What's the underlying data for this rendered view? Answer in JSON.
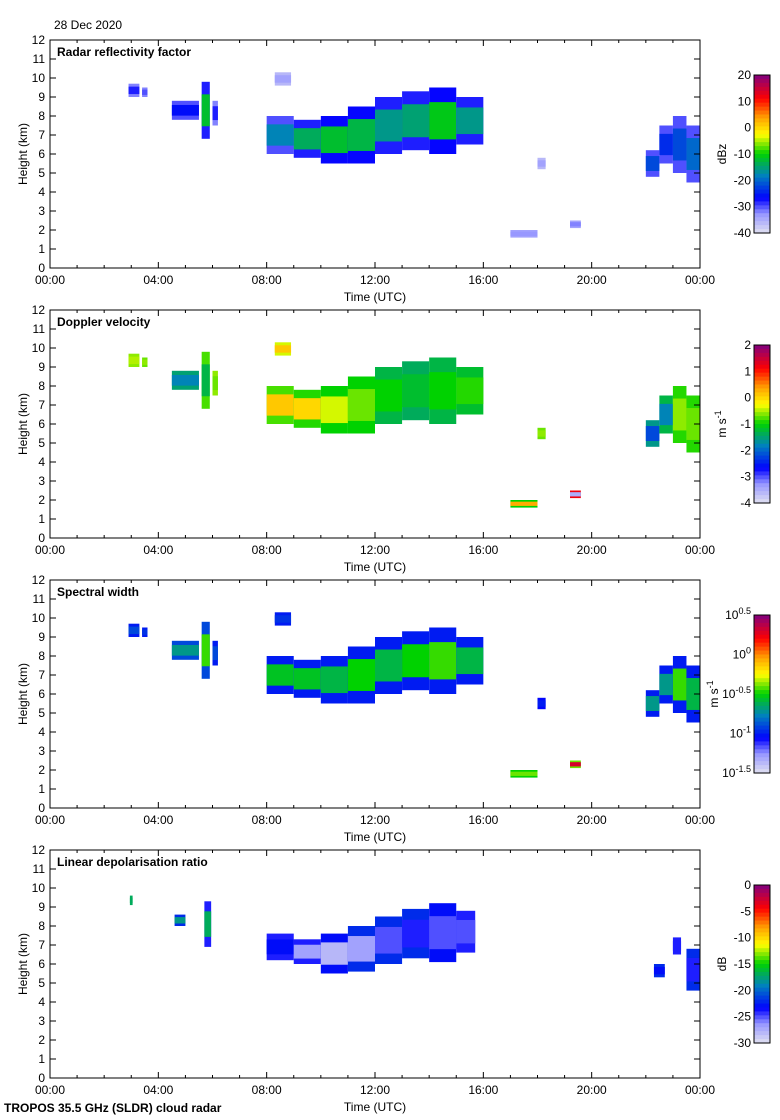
{
  "date": "28 Dec 2020",
  "footer": "TROPOS 35.5 GHz (SLDR) cloud radar",
  "chart_data": [
    {
      "type": "heatmap",
      "title": "Radar reflectivity factor",
      "xlabel": "Time (UTC)",
      "ylabel": "Height (km)",
      "xlim": [
        0,
        24
      ],
      "ylim": [
        0,
        12
      ],
      "xticks": [
        "00:00",
        "04:00",
        "08:00",
        "12:00",
        "16:00",
        "20:00",
        "00:00"
      ],
      "yticks": [
        "0",
        "1",
        "2",
        "3",
        "4",
        "5",
        "6",
        "7",
        "8",
        "9",
        "10",
        "11",
        "12"
      ],
      "colorbar": {
        "unit": "dBz",
        "scale": "linear",
        "range": [
          -40,
          20
        ],
        "ticks": [
          {
            "base": "20"
          },
          {
            "base": "10"
          },
          {
            "base": "0"
          },
          {
            "base": "-10"
          },
          {
            "base": "-20"
          },
          {
            "base": "-30"
          },
          {
            "base": "-40"
          }
        ]
      },
      "echoes": [
        [
          2.9,
          3.3,
          9.0,
          9.7,
          -32,
          -28
        ],
        [
          3.4,
          3.6,
          9.0,
          9.5,
          -32,
          -30
        ],
        [
          4.5,
          5.5,
          7.8,
          8.8,
          -30,
          -26
        ],
        [
          5.6,
          5.9,
          6.8,
          9.8,
          -28,
          -12
        ],
        [
          6.0,
          6.2,
          7.5,
          8.8,
          -32,
          -28
        ],
        [
          8.3,
          8.9,
          9.6,
          10.3,
          -36,
          -34
        ],
        [
          8.0,
          9.0,
          6.0,
          8.0,
          -30,
          -18
        ],
        [
          9.0,
          10.0,
          5.8,
          7.8,
          -28,
          -14
        ],
        [
          10.0,
          11.0,
          5.5,
          8.0,
          -27,
          -12
        ],
        [
          11.0,
          12.0,
          5.5,
          8.5,
          -27,
          -13
        ],
        [
          12.0,
          13.0,
          6.0,
          9.0,
          -28,
          -16
        ],
        [
          13.0,
          14.0,
          6.2,
          9.3,
          -28,
          -15
        ],
        [
          14.0,
          15.0,
          6.0,
          9.5,
          -27,
          -11
        ],
        [
          15.0,
          16.0,
          6.5,
          9.0,
          -28,
          -16
        ],
        [
          18.0,
          18.3,
          5.2,
          5.8,
          -36,
          -34
        ],
        [
          17.0,
          18.0,
          1.6,
          2.0,
          -34,
          -33
        ],
        [
          19.2,
          19.6,
          2.1,
          2.5,
          -34,
          -32
        ],
        [
          22.0,
          22.5,
          4.8,
          6.2,
          -30,
          -22
        ],
        [
          22.5,
          23.0,
          5.5,
          7.5,
          -30,
          -24
        ],
        [
          23.0,
          23.5,
          5.0,
          8.0,
          -30,
          -22
        ],
        [
          23.5,
          24.0,
          4.5,
          7.5,
          -30,
          -20
        ]
      ]
    },
    {
      "type": "heatmap",
      "title": "Doppler velocity",
      "xlabel": "Time (UTC)",
      "ylabel": "Height (km)",
      "xlim": [
        0,
        24
      ],
      "ylim": [
        0,
        12
      ],
      "xticks": [
        "00:00",
        "04:00",
        "08:00",
        "12:00",
        "16:00",
        "20:00",
        "00:00"
      ],
      "yticks": [
        "0",
        "1",
        "2",
        "3",
        "4",
        "5",
        "6",
        "7",
        "8",
        "9",
        "10",
        "11",
        "12"
      ],
      "colorbar": {
        "unit": "m s",
        "unit_exp": "-1",
        "scale": "linear",
        "range": [
          -4,
          2
        ],
        "ticks": [
          {
            "base": "2"
          },
          {
            "base": "1"
          },
          {
            "base": "0"
          },
          {
            "base": "-1"
          },
          {
            "base": "-2"
          },
          {
            "base": "-3"
          },
          {
            "base": "-4"
          }
        ]
      },
      "echoes": [
        [
          2.9,
          3.3,
          9.0,
          9.7,
          -0.6,
          -0.5
        ],
        [
          3.4,
          3.6,
          9.0,
          9.5,
          -0.7,
          -0.6
        ],
        [
          4.5,
          5.5,
          7.8,
          8.8,
          -1.5,
          -1.8
        ],
        [
          5.6,
          5.9,
          6.8,
          9.8,
          -0.8,
          -1.3
        ],
        [
          6.0,
          6.2,
          7.5,
          8.8,
          -0.6,
          -0.7
        ],
        [
          8.3,
          8.9,
          9.6,
          10.3,
          -0.4,
          0.1
        ],
        [
          8.0,
          9.0,
          6.0,
          8.0,
          -0.8,
          0.1
        ],
        [
          9.0,
          10.0,
          5.8,
          7.8,
          -0.9,
          0.0
        ],
        [
          10.0,
          11.0,
          5.5,
          8.0,
          -1.0,
          -0.4
        ],
        [
          11.0,
          12.0,
          5.5,
          8.5,
          -1.0,
          -0.7
        ],
        [
          12.0,
          13.0,
          6.0,
          9.0,
          -1.3,
          -1.0
        ],
        [
          13.0,
          14.0,
          6.2,
          9.3,
          -1.4,
          -1.2
        ],
        [
          14.0,
          15.0,
          6.0,
          9.5,
          -1.3,
          -1.0
        ],
        [
          15.0,
          16.0,
          6.5,
          9.0,
          -1.2,
          -0.9
        ],
        [
          18.0,
          18.3,
          5.2,
          5.8,
          -0.7,
          -0.6
        ],
        [
          17.0,
          18.0,
          1.6,
          2.0,
          -1.0,
          0.3
        ],
        [
          19.2,
          19.6,
          2.1,
          2.5,
          1.2,
          -3.5
        ],
        [
          22.0,
          22.5,
          4.8,
          6.2,
          -1.6,
          -2.2
        ],
        [
          22.5,
          23.0,
          5.5,
          7.5,
          -1.3,
          -1.8
        ],
        [
          23.0,
          23.5,
          5.0,
          8.0,
          -0.9,
          -0.6
        ],
        [
          23.5,
          24.0,
          4.5,
          7.5,
          -0.9,
          -0.7
        ]
      ]
    },
    {
      "type": "heatmap",
      "title": "Spectral width",
      "xlabel": "Time (UTC)",
      "ylabel": "Height (km)",
      "xlim": [
        0,
        24
      ],
      "ylim": [
        0,
        12
      ],
      "xticks": [
        "00:00",
        "04:00",
        "08:00",
        "12:00",
        "16:00",
        "20:00",
        "00:00"
      ],
      "yticks": [
        "0",
        "1",
        "2",
        "3",
        "4",
        "5",
        "6",
        "7",
        "8",
        "9",
        "10",
        "11",
        "12"
      ],
      "colorbar": {
        "unit": "m s",
        "unit_exp": "-1",
        "scale": "log10",
        "range": [
          -1.5,
          0.5
        ],
        "ticks": [
          {
            "base": "10",
            "exp": "0.5"
          },
          {
            "base": "10",
            "exp": "0"
          },
          {
            "base": "10",
            "exp": "-0.5"
          },
          {
            "base": "10",
            "exp": "-1"
          },
          {
            "base": "10",
            "exp": "-1.5"
          }
        ]
      },
      "echoes": [
        [
          2.9,
          3.3,
          9.0,
          9.7,
          -1.0,
          -0.9
        ],
        [
          3.4,
          3.6,
          9.0,
          9.5,
          -1.0,
          -0.95
        ],
        [
          4.5,
          5.5,
          7.8,
          8.8,
          -0.9,
          -0.7
        ],
        [
          5.6,
          5.9,
          6.8,
          9.8,
          -0.9,
          -0.45
        ],
        [
          6.0,
          6.2,
          7.5,
          8.8,
          -1.0,
          -0.9
        ],
        [
          8.3,
          8.9,
          9.6,
          10.3,
          -1.0,
          -0.95
        ],
        [
          8.0,
          9.0,
          6.0,
          8.0,
          -1.0,
          -0.55
        ],
        [
          9.0,
          10.0,
          5.8,
          7.8,
          -1.0,
          -0.55
        ],
        [
          10.0,
          11.0,
          5.5,
          8.0,
          -1.0,
          -0.6
        ],
        [
          11.0,
          12.0,
          5.5,
          8.5,
          -1.0,
          -0.5
        ],
        [
          12.0,
          13.0,
          6.0,
          9.0,
          -1.0,
          -0.6
        ],
        [
          13.0,
          14.0,
          6.2,
          9.3,
          -1.0,
          -0.5
        ],
        [
          14.0,
          15.0,
          6.0,
          9.5,
          -1.0,
          -0.45
        ],
        [
          15.0,
          16.0,
          6.5,
          9.0,
          -1.0,
          -0.6
        ],
        [
          18.0,
          18.3,
          5.2,
          5.8,
          -1.05,
          -1.0
        ],
        [
          17.0,
          18.0,
          1.6,
          2.0,
          -0.5,
          -0.4
        ],
        [
          19.2,
          19.6,
          2.1,
          2.5,
          -0.4,
          0.3
        ],
        [
          22.0,
          22.5,
          4.8,
          6.2,
          -1.0,
          -0.7
        ],
        [
          22.5,
          23.0,
          5.5,
          7.5,
          -1.0,
          -0.7
        ],
        [
          23.0,
          23.5,
          5.0,
          8.0,
          -1.0,
          -0.45
        ],
        [
          23.5,
          24.0,
          4.5,
          7.5,
          -1.0,
          -0.6
        ]
      ]
    },
    {
      "type": "heatmap",
      "title": "Linear depolarisation ratio",
      "xlabel": "Time (UTC)",
      "ylabel": "Height (km)",
      "xlim": [
        0,
        24
      ],
      "ylim": [
        0,
        12
      ],
      "xticks": [
        "00:00",
        "04:00",
        "08:00",
        "12:00",
        "16:00",
        "20:00",
        "00:00"
      ],
      "yticks": [
        "0",
        "1",
        "2",
        "3",
        "4",
        "5",
        "6",
        "7",
        "8",
        "9",
        "10",
        "11",
        "12"
      ],
      "colorbar": {
        "unit": "dB",
        "scale": "linear",
        "range": [
          -30,
          0
        ],
        "ticks": [
          {
            "base": "0"
          },
          {
            "base": "-5"
          },
          {
            "base": "-10"
          },
          {
            "base": "-15"
          },
          {
            "base": "-20"
          },
          {
            "base": "-25"
          },
          {
            "base": "-30"
          }
        ]
      },
      "echoes": [
        [
          2.95,
          3.05,
          9.1,
          9.6,
          -17,
          -17
        ],
        [
          4.6,
          5.0,
          8.0,
          8.6,
          -22,
          -18
        ],
        [
          5.7,
          5.95,
          6.9,
          9.3,
          -24,
          -17
        ],
        [
          8.0,
          9.0,
          6.2,
          7.6,
          -24,
          -23
        ],
        [
          9.0,
          10.0,
          6.0,
          7.3,
          -24,
          -27
        ],
        [
          10.0,
          11.0,
          5.5,
          7.6,
          -23,
          -28
        ],
        [
          11.0,
          12.0,
          5.6,
          8.0,
          -22,
          -27
        ],
        [
          12.0,
          13.0,
          6.0,
          8.5,
          -22,
          -25
        ],
        [
          13.0,
          14.0,
          6.3,
          8.9,
          -22,
          -24
        ],
        [
          14.0,
          15.0,
          6.1,
          9.2,
          -23,
          -25
        ],
        [
          15.0,
          15.7,
          6.6,
          8.8,
          -24,
          -25
        ],
        [
          22.3,
          22.7,
          5.3,
          6.0,
          -22,
          -23
        ],
        [
          23.0,
          23.3,
          6.5,
          7.4,
          -24,
          -24
        ],
        [
          23.5,
          24.0,
          4.6,
          6.8,
          -22,
          -24
        ]
      ]
    }
  ]
}
